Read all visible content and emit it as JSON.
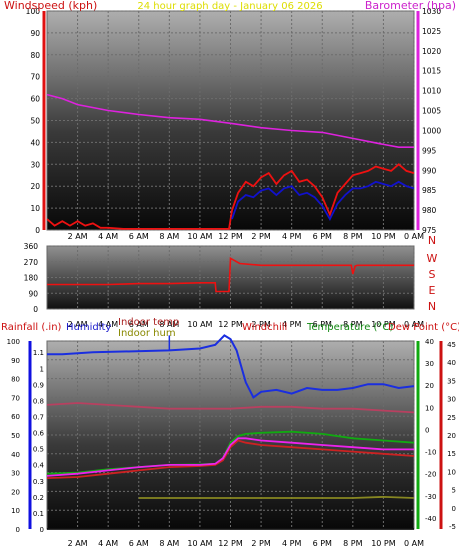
{
  "chart_data": [
    {
      "type": "line",
      "panel": "wind-baro",
      "title": "24 hour graph day - January 06 2026",
      "left_axis_label": "Windspeed (kph)",
      "right_axis_label": "Barometer (hpa)",
      "x_ticks": [
        "2 AM",
        "4 AM",
        "6 AM",
        "8 AM",
        "10 AM",
        "12 PM",
        "2 PM",
        "4 PM",
        "6 PM",
        "8 PM",
        "10 PM",
        "0 AM"
      ],
      "left_ticks": [
        "0",
        "10",
        "20",
        "30",
        "40",
        "50",
        "60",
        "70",
        "80",
        "90",
        "100"
      ],
      "right_ticks": [
        "975",
        "980",
        "985",
        "990",
        "995",
        "1000",
        "1005",
        "1010",
        "1015",
        "1020",
        "1025",
        "1030"
      ],
      "left_range": [
        0,
        100
      ],
      "right_range": [
        975,
        1030
      ],
      "series": [
        {
          "name": "Barometer (hpa)",
          "axis": "right",
          "color": "#dd22dd",
          "x": [
            0,
            1,
            2,
            4,
            6,
            8,
            10,
            12,
            14,
            16,
            18,
            20,
            22,
            23,
            24
          ],
          "values": [
            1009,
            1008,
            1006.5,
            1005,
            1004,
            1003.2,
            1002.8,
            1001.8,
            1000.7,
            1000,
            999.5,
            998,
            996.5,
            995.8,
            995.8
          ]
        },
        {
          "name": "Windspeed (kph)",
          "axis": "left",
          "color": "#ee1111",
          "x": [
            0,
            0.5,
            1,
            1.5,
            2,
            2.5,
            3,
            3.5,
            4,
            5,
            10,
            11.9,
            12.1,
            12.5,
            13,
            13.5,
            14,
            14.5,
            15,
            15.5,
            16,
            16.5,
            17,
            17.5,
            18,
            18.5,
            19,
            19.5,
            20,
            20.5,
            21,
            21.5,
            22,
            22.5,
            23,
            23.5,
            24
          ],
          "values": [
            5,
            2,
            4,
            2,
            4,
            2,
            3,
            1,
            1,
            0.5,
            0.5,
            0.5,
            9,
            17,
            22,
            20,
            24,
            26,
            21,
            25,
            27,
            22,
            23,
            20,
            15,
            7,
            17,
            21,
            25,
            26,
            27,
            29,
            28,
            27,
            30,
            27,
            26
          ]
        },
        {
          "name": "Windspeed avg (kph)",
          "axis": "left",
          "color": "#1111cc",
          "x": [
            12.1,
            12.5,
            13,
            13.5,
            14,
            14.5,
            15,
            15.5,
            16,
            16.5,
            17,
            17.5,
            18,
            18.5,
            19,
            19.5,
            20,
            20.5,
            21,
            21.5,
            22,
            22.5,
            23,
            23.5,
            24
          ],
          "values": [
            5,
            13,
            16,
            15,
            18,
            19,
            16,
            19,
            20,
            16,
            17,
            15,
            11,
            5,
            12,
            16,
            19,
            19,
            20,
            22,
            21,
            20,
            22,
            20,
            19
          ]
        }
      ]
    },
    {
      "type": "line",
      "panel": "wind-direction",
      "left_ticks": [
        "0",
        "90",
        "180",
        "270",
        "360"
      ],
      "compass": [
        "N",
        "W",
        "S",
        "E",
        "N"
      ],
      "left_range": [
        0,
        360
      ],
      "x_ticks": [
        "2 AM",
        "4 AM",
        "6 AM",
        "8 AM",
        "10 AM",
        "12 PM",
        "2 PM",
        "4 PM",
        "6 PM",
        "8 PM",
        "10 PM",
        "0 AM"
      ],
      "series": [
        {
          "name": "Wind direction",
          "color": "#ee1111",
          "x": [
            0,
            2,
            4,
            6,
            8,
            10,
            11,
            11.05,
            11.9,
            12.0,
            12.6,
            14,
            16,
            18,
            19.9,
            20.0,
            20.15,
            20.3,
            22,
            24
          ],
          "values": [
            140,
            140,
            140,
            145,
            145,
            150,
            150,
            100,
            100,
            290,
            260,
            250,
            250,
            250,
            250,
            200,
            245,
            250,
            250,
            250
          ]
        }
      ]
    },
    {
      "type": "line",
      "panel": "temp-hum-rain",
      "legend": [
        "Rainfall (.in)",
        "Humidity",
        "Indoor temp",
        "Indoor hum",
        "Windchill",
        "Temperature (°C)",
        "Dew Point (°C)"
      ],
      "x_ticks": [
        "2 AM",
        "4 AM",
        "6 AM",
        "8 AM",
        "10 AM",
        "12 PM",
        "2 PM",
        "4 PM",
        "6 PM",
        "8 PM",
        "10 PM",
        "0 AM"
      ],
      "rain_ticks": [
        "0",
        "0.1",
        "0.2",
        "0.3",
        "0.4",
        "0.5",
        "0.6",
        "0.7",
        "0.8",
        "0.9",
        "1",
        "1.1"
      ],
      "hum_ticks": [
        "0",
        "10",
        "20",
        "30",
        "40",
        "50",
        "60",
        "70",
        "80",
        "90",
        "100"
      ],
      "temp_ticks_inner": [
        "-40",
        "-30",
        "-20",
        "-10",
        "0",
        "10",
        "20",
        "30",
        "40"
      ],
      "temp_ticks_outer": [
        "-5",
        "0",
        "5",
        "10",
        "15",
        "20",
        "25",
        "30",
        "35",
        "40",
        "45"
      ],
      "hum_range": [
        0,
        100
      ],
      "temp_range": [
        -45,
        40
      ],
      "series": [
        {
          "name": "Humidity",
          "axis": "hum",
          "color": "#1a2ee0",
          "x": [
            0,
            1,
            3,
            8,
            10,
            11,
            11.6,
            12,
            12.4,
            13,
            13.5,
            14,
            15,
            16,
            17,
            18,
            19,
            20,
            21,
            22,
            23,
            24
          ],
          "values": [
            93,
            93,
            94,
            95,
            96,
            98,
            103,
            101,
            95,
            78,
            70,
            73,
            74,
            72,
            75,
            74,
            74,
            75,
            77,
            77,
            75,
            76
          ]
        },
        {
          "name": "Indoor hum",
          "axis": "hum",
          "color": "#b84060",
          "x": [
            0,
            2,
            4,
            6,
            8,
            10,
            12,
            14,
            16,
            18,
            20,
            22,
            24
          ],
          "values": [
            66,
            67,
            66,
            65,
            64,
            64,
            64,
            65,
            65,
            64,
            64,
            63,
            62
          ]
        },
        {
          "name": "Indoor temp",
          "axis": "temp",
          "color": "#888822",
          "x": [
            6,
            8,
            10,
            12,
            14,
            16,
            18,
            20,
            22,
            24
          ],
          "values": [
            -31,
            -31,
            -31,
            -31,
            -31,
            -31,
            -31,
            -31,
            -30.5,
            -31
          ]
        },
        {
          "name": "Temperature (°C)",
          "axis": "temp",
          "color": "#11aa11",
          "x": [
            0,
            2,
            4,
            6,
            8,
            10,
            11,
            11.5,
            12,
            12.5,
            13,
            14,
            16,
            18,
            20,
            22,
            24
          ],
          "values": [
            -20,
            -19.5,
            -18,
            -17,
            -16,
            -15.8,
            -15.5,
            -13,
            -6,
            -3,
            -2,
            -1.5,
            -1,
            -2,
            -4,
            -5,
            -6
          ]
        },
        {
          "name": "Dew Point (°C)",
          "axis": "temp",
          "color": "#cc2222",
          "x": [
            0,
            2,
            4,
            6,
            8,
            10,
            11,
            11.5,
            12,
            12.5,
            13,
            14,
            16,
            18,
            20,
            22,
            24
          ],
          "values": [
            -22,
            -21.5,
            -20,
            -18.5,
            -17,
            -16.5,
            -16,
            -14,
            -8,
            -5,
            -6,
            -7,
            -8,
            -9,
            -10,
            -11,
            -12
          ]
        },
        {
          "name": "Windchill",
          "axis": "temp",
          "color": "#ee22ee",
          "x": [
            0,
            2,
            4,
            6,
            8,
            10,
            11,
            11.5,
            12,
            12.5,
            13,
            14,
            16,
            18,
            20,
            22,
            24
          ],
          "values": [
            -21,
            -20,
            -18.5,
            -17,
            -16,
            -16,
            -15.5,
            -13,
            -7,
            -4,
            -4,
            -5,
            -6,
            -7,
            -8,
            -9,
            -9
          ]
        },
        {
          "name": "Rainfall (.in)",
          "axis": "hum",
          "color": "#111111",
          "x": [
            0,
            24
          ],
          "values": [
            0,
            0
          ]
        }
      ]
    }
  ]
}
